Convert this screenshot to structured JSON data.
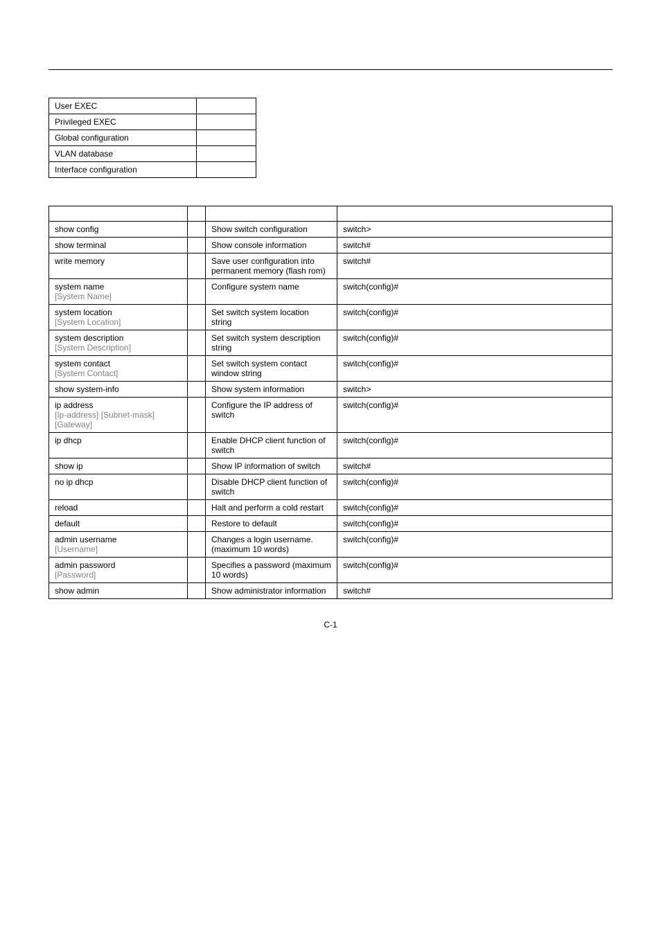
{
  "modes": [
    "User EXEC",
    "Privileged EXEC",
    "Global configuration",
    "VLAN database",
    "Interface configuration"
  ],
  "commands": [
    {
      "cmd": "show config",
      "desc": "Show switch configuration",
      "defaults": "switch>"
    },
    {
      "cmd": "show terminal",
      "desc": "Show console information",
      "defaults": "switch#"
    },
    {
      "cmd": "write memory",
      "desc": "Save user configuration into permanent memory (flash rom)",
      "defaults": "switch#"
    },
    {
      "cmd": "system name",
      "param": "[System Name]",
      "desc": "Configure system name",
      "defaults": "switch(config)#"
    },
    {
      "cmd": "system location",
      "param": "[System Location]",
      "desc": "Set switch system location string",
      "defaults": "switch(config)#"
    },
    {
      "cmd": "system description",
      "param": "[System Description]",
      "desc": "Set switch system description string",
      "defaults": "switch(config)#"
    },
    {
      "cmd": "system contact",
      "param": "[System Contact]",
      "desc": "Set switch system contact window string",
      "defaults": "switch(config)#"
    },
    {
      "cmd": "show system-info",
      "desc": "Show system information",
      "defaults": "switch>"
    },
    {
      "cmd": "ip address",
      "param": "[Ip-address] [Subnet-mask] [Gateway]",
      "desc": "Configure the IP address of switch",
      "defaults": "switch(config)#"
    },
    {
      "cmd": "ip dhcp",
      "desc": "Enable DHCP client function of switch",
      "defaults": "switch(config)#"
    },
    {
      "cmd": "show ip",
      "desc": "Show IP information of switch",
      "defaults": "switch#"
    },
    {
      "cmd": "no ip dhcp",
      "desc": "Disable DHCP client function of switch",
      "defaults": "switch(config)#"
    },
    {
      "cmd": "reload",
      "desc": "Halt and perform a cold restart",
      "defaults": "switch(config)#"
    },
    {
      "cmd": "default",
      "desc": "Restore to default",
      "defaults": "switch(config)#"
    },
    {
      "cmd": "admin username",
      "param": "[Username]",
      "desc": "Changes a login username. (maximum 10 words)",
      "defaults": "switch(config)#"
    },
    {
      "cmd": "admin password",
      "param": "[Password]",
      "desc": "Specifies a password (maximum 10 words)",
      "defaults": "switch(config)#"
    },
    {
      "cmd": "show admin",
      "desc": "Show administrator information",
      "defaults": "switch#"
    }
  ],
  "footer": "C-1"
}
